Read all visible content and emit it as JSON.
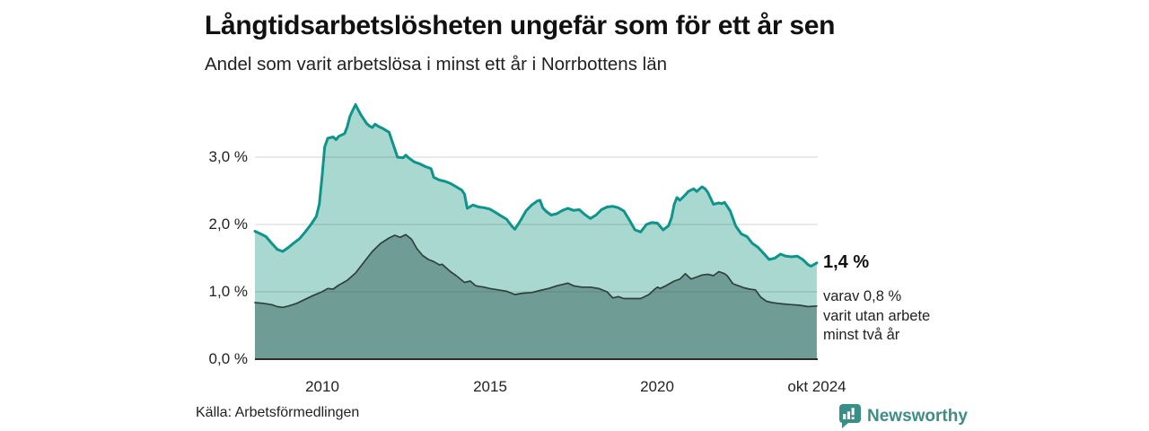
{
  "title": "Långtidsarbetslösheten ungefär som för ett år sen",
  "subtitle": "Andel som varit arbetslösa i minst ett år i Norrbottens län",
  "annotation": {
    "value": "1,4 %",
    "lines": [
      "varav 0,8 %",
      "varit utan arbete",
      "minst två år"
    ]
  },
  "footer": {
    "source": "Källa: Arbetsförmedlingen",
    "logo_text": "Newsworthy"
  },
  "colors": {
    "accent_teal": "#0f948b",
    "light_area": "#a8d8cf",
    "dark_area": "#6f9d96",
    "dark_line": "#30403c",
    "axis": "#2b2b2b",
    "grid": "rgba(60,60,60,0.18)",
    "logo_teal": "#3e8d86"
  },
  "chart_data": {
    "type": "area",
    "title": "Långtidsarbetslösheten ungefär som för ett år sen",
    "subtitle": "Andel som varit arbetslösa i minst ett år i Norrbottens län",
    "unit": "%",
    "grid": true,
    "x_axis": {
      "range": [
        2008.0,
        2024.78
      ],
      "ticks": [
        {
          "year": 2010,
          "label": "2010"
        },
        {
          "year": 2015,
          "label": "2015"
        },
        {
          "year": 2020,
          "label": "2020"
        },
        {
          "year": 2024.75,
          "label": "okt 2024"
        }
      ]
    },
    "y_axis": {
      "range": [
        0,
        4.0
      ],
      "gridline_values": [
        1.0,
        2.0,
        3.0
      ],
      "ticks": [
        {
          "value": 3.0,
          "label": "3,0 %"
        },
        {
          "value": 2.0,
          "label": "2,0 %"
        },
        {
          "value": 1.0,
          "label": "1,0 %"
        },
        {
          "value": 0.0,
          "label": "0,0 %"
        }
      ]
    },
    "latest": {
      "total_at_least_one_year": 1.4,
      "of_which_at_least_two_years": 0.8,
      "period": "okt 2024"
    },
    "series": [
      {
        "id": "minst-ett-ar",
        "label": "Andel arbetslösa minst ett år",
        "fill": "#a8d8cf",
        "stroke": "#0f948b",
        "stroke_width": 3,
        "points": [
          [
            2008.0,
            1.9
          ],
          [
            2008.17,
            1.86
          ],
          [
            2008.33,
            1.82
          ],
          [
            2008.5,
            1.72
          ],
          [
            2008.67,
            1.63
          ],
          [
            2008.83,
            1.6
          ],
          [
            2009.0,
            1.66
          ],
          [
            2009.17,
            1.73
          ],
          [
            2009.33,
            1.79
          ],
          [
            2009.5,
            1.89
          ],
          [
            2009.67,
            2.0
          ],
          [
            2009.83,
            2.12
          ],
          [
            2009.92,
            2.3
          ],
          [
            2010.0,
            2.7
          ],
          [
            2010.08,
            3.15
          ],
          [
            2010.17,
            3.28
          ],
          [
            2010.33,
            3.3
          ],
          [
            2010.42,
            3.26
          ],
          [
            2010.5,
            3.31
          ],
          [
            2010.67,
            3.35
          ],
          [
            2010.75,
            3.45
          ],
          [
            2010.83,
            3.6
          ],
          [
            2010.92,
            3.7
          ],
          [
            2011.0,
            3.78
          ],
          [
            2011.08,
            3.7
          ],
          [
            2011.17,
            3.62
          ],
          [
            2011.33,
            3.5
          ],
          [
            2011.42,
            3.46
          ],
          [
            2011.5,
            3.44
          ],
          [
            2011.58,
            3.49
          ],
          [
            2011.67,
            3.46
          ],
          [
            2011.83,
            3.42
          ],
          [
            2012.0,
            3.37
          ],
          [
            2012.08,
            3.25
          ],
          [
            2012.17,
            3.12
          ],
          [
            2012.25,
            3.0
          ],
          [
            2012.42,
            2.99
          ],
          [
            2012.5,
            3.03
          ],
          [
            2012.58,
            2.99
          ],
          [
            2012.75,
            2.93
          ],
          [
            2012.92,
            2.9
          ],
          [
            2013.08,
            2.86
          ],
          [
            2013.25,
            2.83
          ],
          [
            2013.33,
            2.7
          ],
          [
            2013.5,
            2.66
          ],
          [
            2013.67,
            2.64
          ],
          [
            2013.83,
            2.61
          ],
          [
            2014.0,
            2.56
          ],
          [
            2014.17,
            2.51
          ],
          [
            2014.25,
            2.45
          ],
          [
            2014.33,
            2.24
          ],
          [
            2014.5,
            2.29
          ],
          [
            2014.67,
            2.26
          ],
          [
            2014.83,
            2.25
          ],
          [
            2015.0,
            2.23
          ],
          [
            2015.17,
            2.18
          ],
          [
            2015.33,
            2.13
          ],
          [
            2015.5,
            2.08
          ],
          [
            2015.67,
            1.97
          ],
          [
            2015.75,
            1.93
          ],
          [
            2015.92,
            2.06
          ],
          [
            2016.08,
            2.2
          ],
          [
            2016.25,
            2.29
          ],
          [
            2016.42,
            2.35
          ],
          [
            2016.5,
            2.36
          ],
          [
            2016.58,
            2.25
          ],
          [
            2016.67,
            2.2
          ],
          [
            2016.83,
            2.14
          ],
          [
            2017.0,
            2.16
          ],
          [
            2017.17,
            2.21
          ],
          [
            2017.33,
            2.24
          ],
          [
            2017.5,
            2.21
          ],
          [
            2017.67,
            2.22
          ],
          [
            2017.83,
            2.15
          ],
          [
            2018.0,
            2.09
          ],
          [
            2018.17,
            2.14
          ],
          [
            2018.33,
            2.22
          ],
          [
            2018.5,
            2.26
          ],
          [
            2018.67,
            2.27
          ],
          [
            2018.83,
            2.25
          ],
          [
            2019.0,
            2.2
          ],
          [
            2019.17,
            2.06
          ],
          [
            2019.33,
            1.92
          ],
          [
            2019.5,
            1.89
          ],
          [
            2019.67,
            2.0
          ],
          [
            2019.83,
            2.03
          ],
          [
            2020.0,
            2.02
          ],
          [
            2020.17,
            1.92
          ],
          [
            2020.33,
            1.98
          ],
          [
            2020.42,
            2.1
          ],
          [
            2020.5,
            2.3
          ],
          [
            2020.58,
            2.4
          ],
          [
            2020.67,
            2.36
          ],
          [
            2020.83,
            2.44
          ],
          [
            2020.92,
            2.49
          ],
          [
            2021.08,
            2.53
          ],
          [
            2021.17,
            2.49
          ],
          [
            2021.33,
            2.56
          ],
          [
            2021.42,
            2.53
          ],
          [
            2021.5,
            2.48
          ],
          [
            2021.67,
            2.3
          ],
          [
            2021.83,
            2.32
          ],
          [
            2021.92,
            2.31
          ],
          [
            2022.0,
            2.33
          ],
          [
            2022.17,
            2.2
          ],
          [
            2022.33,
            1.98
          ],
          [
            2022.5,
            1.86
          ],
          [
            2022.67,
            1.82
          ],
          [
            2022.83,
            1.72
          ],
          [
            2023.0,
            1.66
          ],
          [
            2023.17,
            1.57
          ],
          [
            2023.33,
            1.48
          ],
          [
            2023.5,
            1.5
          ],
          [
            2023.67,
            1.56
          ],
          [
            2023.83,
            1.53
          ],
          [
            2024.0,
            1.52
          ],
          [
            2024.17,
            1.53
          ],
          [
            2024.33,
            1.48
          ],
          [
            2024.5,
            1.4
          ],
          [
            2024.58,
            1.38
          ],
          [
            2024.75,
            1.43
          ]
        ]
      },
      {
        "id": "minst-tva-ar",
        "label": "varav arbetslösa minst två år",
        "fill": "#6f9d96",
        "stroke": "#30403c",
        "stroke_width": 1.7,
        "points": [
          [
            2008.0,
            0.84
          ],
          [
            2008.25,
            0.83
          ],
          [
            2008.5,
            0.81
          ],
          [
            2008.67,
            0.78
          ],
          [
            2008.83,
            0.77
          ],
          [
            2009.0,
            0.79
          ],
          [
            2009.25,
            0.83
          ],
          [
            2009.5,
            0.89
          ],
          [
            2009.75,
            0.95
          ],
          [
            2010.0,
            1.0
          ],
          [
            2010.17,
            1.05
          ],
          [
            2010.33,
            1.04
          ],
          [
            2010.5,
            1.1
          ],
          [
            2010.75,
            1.17
          ],
          [
            2011.0,
            1.28
          ],
          [
            2011.25,
            1.44
          ],
          [
            2011.5,
            1.6
          ],
          [
            2011.75,
            1.72
          ],
          [
            2012.0,
            1.8
          ],
          [
            2012.17,
            1.84
          ],
          [
            2012.33,
            1.81
          ],
          [
            2012.5,
            1.85
          ],
          [
            2012.67,
            1.78
          ],
          [
            2012.83,
            1.64
          ],
          [
            2013.0,
            1.54
          ],
          [
            2013.17,
            1.48
          ],
          [
            2013.33,
            1.45
          ],
          [
            2013.5,
            1.4
          ],
          [
            2013.58,
            1.41
          ],
          [
            2013.83,
            1.3
          ],
          [
            2014.0,
            1.24
          ],
          [
            2014.25,
            1.14
          ],
          [
            2014.42,
            1.16
          ],
          [
            2014.58,
            1.09
          ],
          [
            2014.83,
            1.07
          ],
          [
            2015.0,
            1.05
          ],
          [
            2015.25,
            1.03
          ],
          [
            2015.5,
            1.01
          ],
          [
            2015.75,
            0.96
          ],
          [
            2016.0,
            0.98
          ],
          [
            2016.25,
            0.99
          ],
          [
            2016.5,
            1.02
          ],
          [
            2016.75,
            1.05
          ],
          [
            2017.0,
            1.09
          ],
          [
            2017.17,
            1.11
          ],
          [
            2017.33,
            1.13
          ],
          [
            2017.5,
            1.09
          ],
          [
            2017.75,
            1.07
          ],
          [
            2018.0,
            1.07
          ],
          [
            2018.25,
            1.05
          ],
          [
            2018.5,
            1.0
          ],
          [
            2018.67,
            0.91
          ],
          [
            2018.83,
            0.93
          ],
          [
            2019.0,
            0.9
          ],
          [
            2019.25,
            0.9
          ],
          [
            2019.5,
            0.9
          ],
          [
            2019.75,
            0.96
          ],
          [
            2019.92,
            1.04
          ],
          [
            2020.0,
            1.07
          ],
          [
            2020.08,
            1.05
          ],
          [
            2020.25,
            1.09
          ],
          [
            2020.5,
            1.16
          ],
          [
            2020.67,
            1.19
          ],
          [
            2020.83,
            1.27
          ],
          [
            2021.0,
            1.19
          ],
          [
            2021.17,
            1.22
          ],
          [
            2021.33,
            1.25
          ],
          [
            2021.5,
            1.26
          ],
          [
            2021.67,
            1.24
          ],
          [
            2021.83,
            1.3
          ],
          [
            2022.0,
            1.27
          ],
          [
            2022.08,
            1.24
          ],
          [
            2022.25,
            1.12
          ],
          [
            2022.42,
            1.09
          ],
          [
            2022.58,
            1.06
          ],
          [
            2022.75,
            1.04
          ],
          [
            2022.92,
            1.03
          ],
          [
            2023.08,
            0.92
          ],
          [
            2023.25,
            0.86
          ],
          [
            2023.42,
            0.84
          ],
          [
            2023.58,
            0.83
          ],
          [
            2023.75,
            0.82
          ],
          [
            2024.0,
            0.81
          ],
          [
            2024.25,
            0.8
          ],
          [
            2024.5,
            0.78
          ],
          [
            2024.75,
            0.79
          ]
        ]
      }
    ]
  }
}
